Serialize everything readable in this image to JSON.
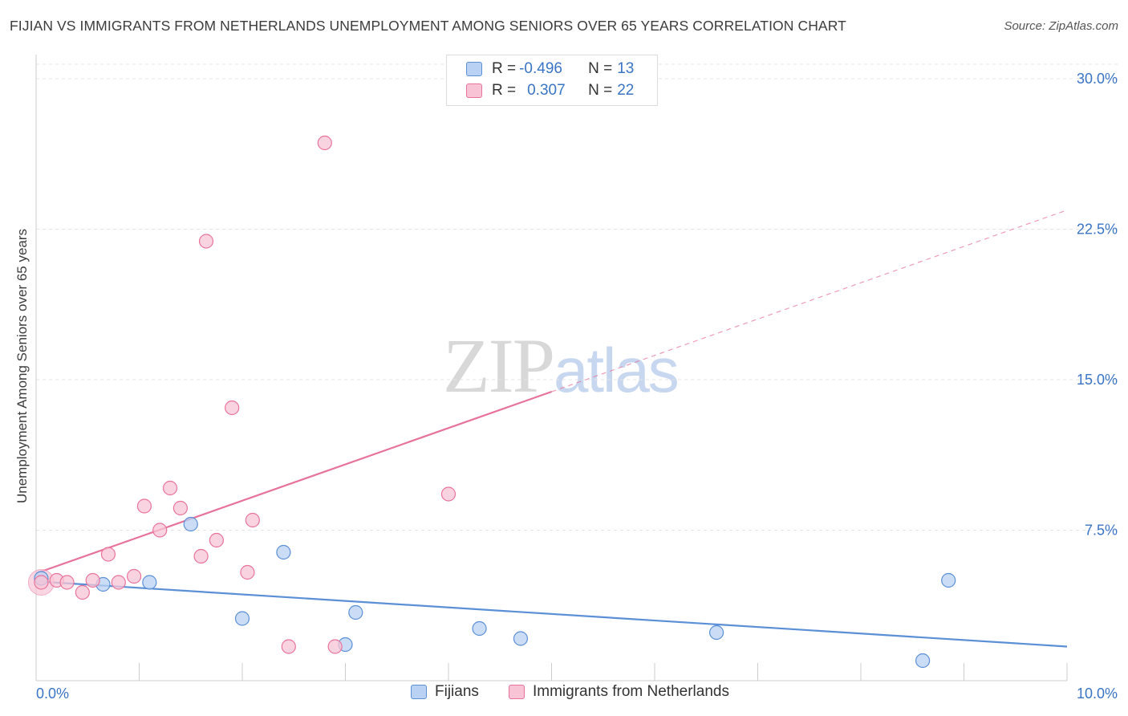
{
  "title": "FIJIAN VS IMMIGRANTS FROM NETHERLANDS UNEMPLOYMENT AMONG SENIORS OVER 65 YEARS CORRELATION CHART",
  "source": "Source: ZipAtlas.com",
  "watermark": {
    "zip": "ZIP",
    "atlas": "atlas"
  },
  "legend_top": [
    {
      "r_label": "R = ",
      "r_value": "-0.496",
      "n_label": "N = ",
      "n_value": "13"
    },
    {
      "r_label": "R = ",
      "r_value": "0.307",
      "n_label": "N = ",
      "n_value": "22"
    }
  ],
  "chart_data": {
    "type": "scatter",
    "title": "FIJIAN VS IMMIGRANTS FROM NETHERLANDS UNEMPLOYMENT AMONG SENIORS OVER 65 YEARS CORRELATION CHART",
    "xlabel": "",
    "ylabel": "Unemployment Among Seniors over 65 years",
    "xlim": [
      0,
      10
    ],
    "ylim": [
      0,
      30
    ],
    "x_tick_labels": [
      "0.0%",
      "10.0%"
    ],
    "y_ticks": [
      7.5,
      15.0,
      22.5,
      30.0
    ],
    "y_tick_labels": [
      "7.5%",
      "15.0%",
      "22.5%",
      "30.0%"
    ],
    "grid": true,
    "legend_position": "bottom-center",
    "series": [
      {
        "name": "Fijians",
        "color": "#5b8fd6",
        "fill": "#b9d1f3",
        "r": -0.496,
        "n": 13,
        "points": [
          [
            0.05,
            5.1
          ],
          [
            0.65,
            4.8
          ],
          [
            1.1,
            4.9
          ],
          [
            1.5,
            7.8
          ],
          [
            2.0,
            3.1
          ],
          [
            2.4,
            6.4
          ],
          [
            3.1,
            3.4
          ],
          [
            3.0,
            1.8
          ],
          [
            4.3,
            2.6
          ],
          [
            4.7,
            2.1
          ],
          [
            6.6,
            2.4
          ],
          [
            8.85,
            5.0
          ],
          [
            8.6,
            1.0
          ]
        ],
        "trend": {
          "x0": 0,
          "y0": 4.95,
          "x1": 10,
          "y1": 1.7,
          "extend_x": 10
        }
      },
      {
        "name": "Immigrants from Netherlands",
        "color": "#e8739a",
        "fill": "#f8c4d5",
        "r": 0.307,
        "n": 22,
        "points": [
          [
            0.05,
            4.9
          ],
          [
            0.2,
            5.0
          ],
          [
            0.3,
            4.9
          ],
          [
            0.45,
            4.4
          ],
          [
            0.55,
            5.0
          ],
          [
            0.7,
            6.3
          ],
          [
            0.8,
            4.9
          ],
          [
            0.95,
            5.2
          ],
          [
            1.05,
            8.7
          ],
          [
            1.2,
            7.5
          ],
          [
            1.3,
            9.6
          ],
          [
            1.4,
            8.6
          ],
          [
            1.6,
            6.2
          ],
          [
            1.65,
            21.9
          ],
          [
            1.75,
            7.0
          ],
          [
            1.9,
            13.6
          ],
          [
            2.05,
            5.4
          ],
          [
            2.1,
            8.0
          ],
          [
            2.45,
            1.7
          ],
          [
            2.8,
            26.8
          ],
          [
            2.9,
            1.7
          ],
          [
            4.0,
            9.3
          ]
        ],
        "trend": {
          "x0": 0,
          "y0": 5.35,
          "x1": 5.0,
          "y1": 14.4,
          "extend_x": 10
        }
      }
    ]
  },
  "bottom_legend": [
    "Fijians",
    "Immigrants from Netherlands"
  ],
  "colors": {
    "grid": "#e4e4e4",
    "axis": "#cccccc",
    "tick_label": "#3a74c4"
  }
}
